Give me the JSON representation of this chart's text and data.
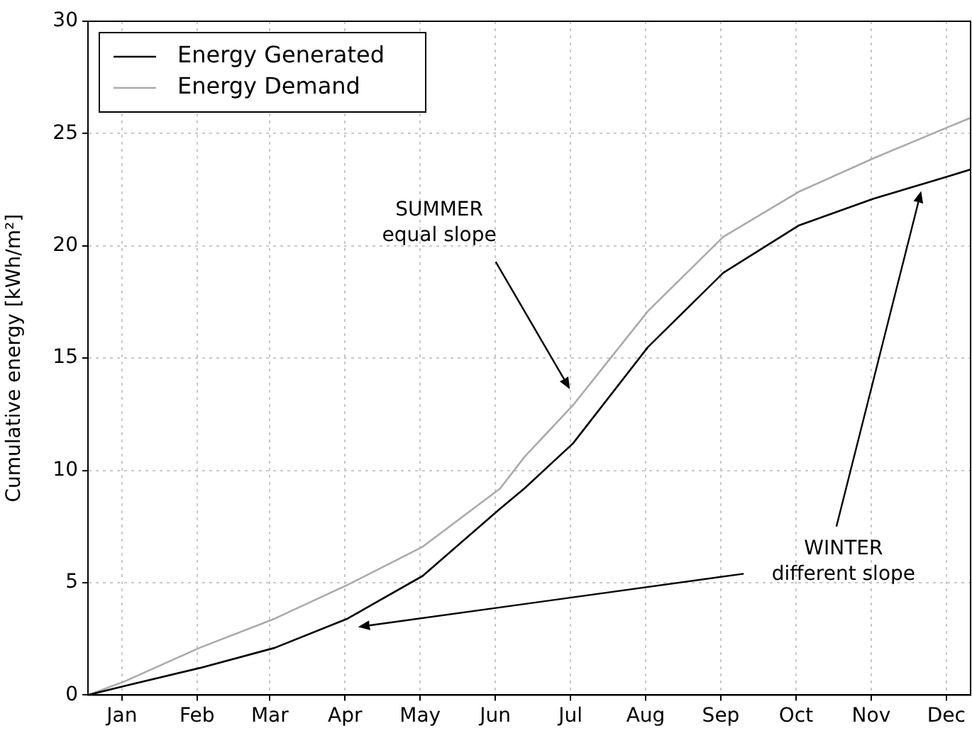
{
  "chart_data": {
    "type": "line",
    "ylabel": "Cumulative energy [kWh/m²]",
    "x": [
      "--01-01",
      "--01-16",
      "--02-16",
      "--03-19",
      "--04-18",
      "--05-19",
      "--06-20",
      "--06-30",
      "--07-20",
      "--08-20",
      "--09-20",
      "--10-21",
      "--11-21",
      "--12-22",
      "--12-31"
    ],
    "series": [
      {
        "name": "Energy Generated",
        "color": "#000000",
        "values": [
          0,
          0.4,
          1.2,
          2.1,
          3.4,
          5.3,
          8.3,
          9.2,
          11.2,
          15.5,
          18.8,
          20.9,
          22.1,
          23.1,
          23.4
        ]
      },
      {
        "name": "Energy Demand",
        "color": "#aaaaaa",
        "values": [
          0,
          0.6,
          2.1,
          3.4,
          4.9,
          6.6,
          9.2,
          10.6,
          12.9,
          17.1,
          20.4,
          22.4,
          23.9,
          25.3,
          25.7
        ]
      }
    ],
    "xlim": [
      "--01-01",
      "--12-31"
    ],
    "xticks": [
      {
        "value": "--01-15",
        "label": "Jan"
      },
      {
        "value": "--02-15",
        "label": "Feb"
      },
      {
        "value": "--03-17",
        "label": "Mar"
      },
      {
        "value": "--04-17",
        "label": "Apr"
      },
      {
        "value": "--05-18",
        "label": "May"
      },
      {
        "value": "--06-18",
        "label": "Jun"
      },
      {
        "value": "--07-19",
        "label": "Jul"
      },
      {
        "value": "--08-19",
        "label": "Aug"
      },
      {
        "value": "--09-19",
        "label": "Sep"
      },
      {
        "value": "--10-20",
        "label": "Oct"
      },
      {
        "value": "--11-20",
        "label": "Nov"
      },
      {
        "value": "--12-21",
        "label": "Dec"
      }
    ],
    "ylim": [
      0,
      30
    ],
    "yticks": [
      0,
      5,
      10,
      15,
      20,
      25,
      30
    ],
    "grid": true,
    "legend": "top left",
    "marker": "none",
    "line_style": "solid",
    "annotations": [
      "SUMMER\nequal slope",
      "WINTER\ndifferent slope"
    ]
  }
}
